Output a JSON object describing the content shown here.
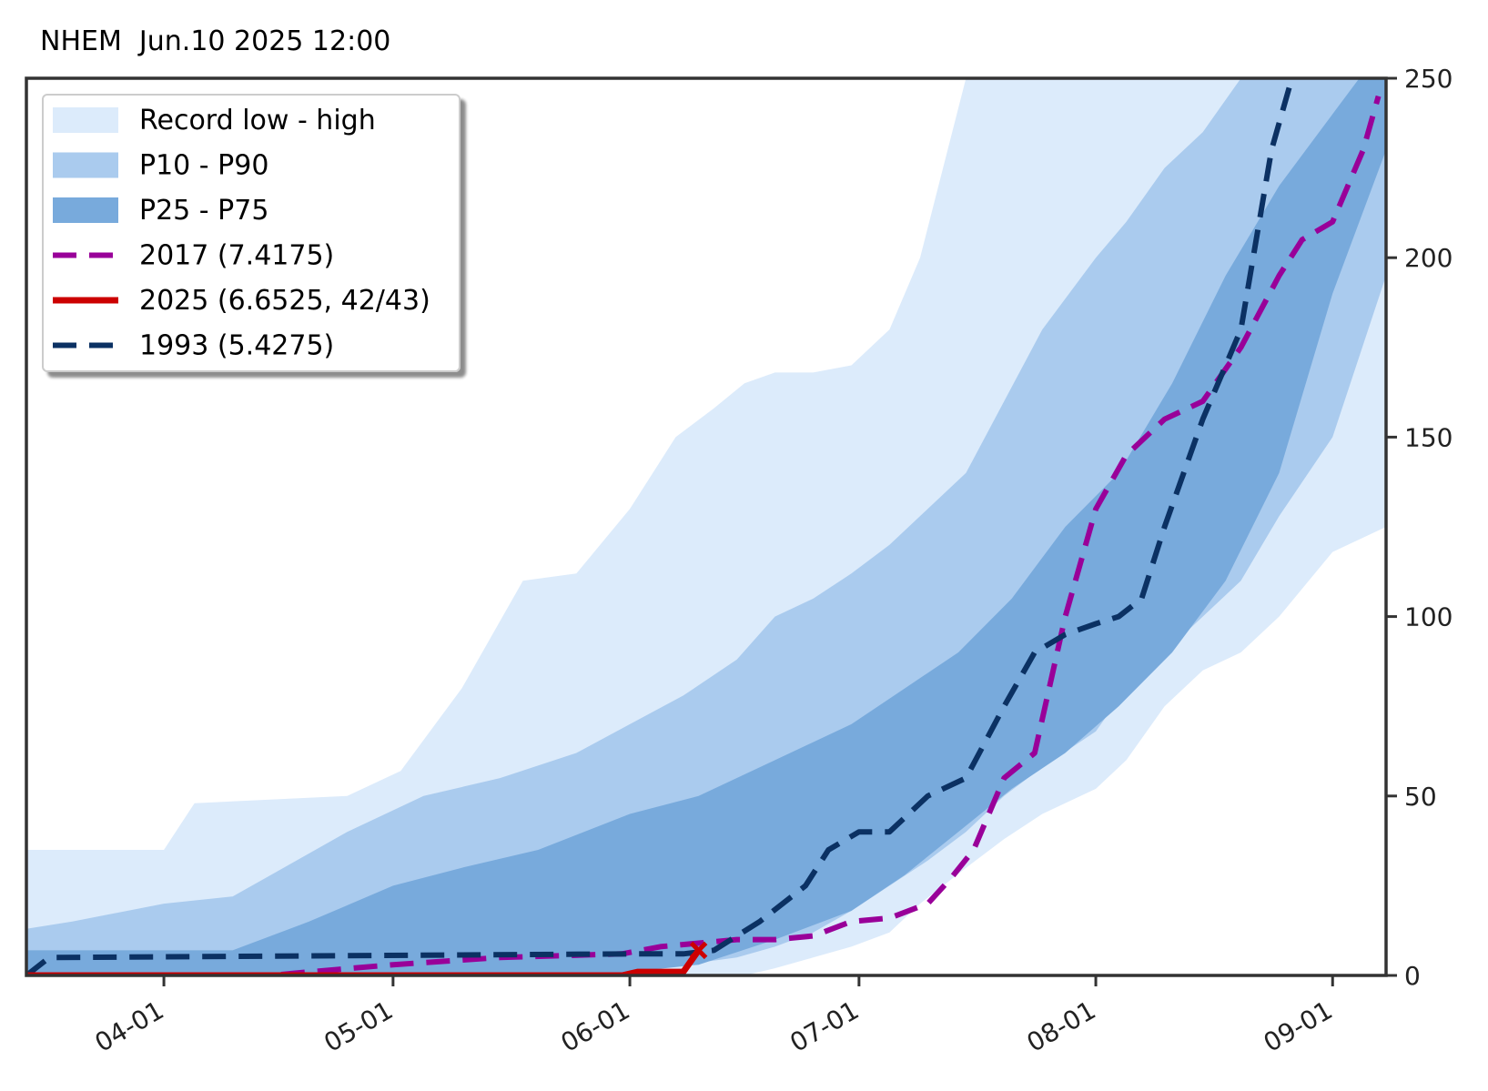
{
  "chart_data": {
    "type": "area",
    "title": "NHEM  Jun.10 2025 12:00",
    "xlabel": "",
    "ylabel": "",
    "x_axis": {
      "type": "date",
      "range": [
        "2025-03-14",
        "2025-09-08"
      ],
      "tick_labels": [
        "04-01",
        "05-01",
        "06-01",
        "07-01",
        "08-01",
        "09-01"
      ],
      "tick_dates": [
        "2025-04-01",
        "2025-05-01",
        "2025-06-01",
        "2025-07-01",
        "2025-08-01",
        "2025-09-01"
      ]
    },
    "y_axis": {
      "side": "right",
      "range": [
        0,
        250
      ],
      "ticks": [
        0,
        50,
        100,
        150,
        200,
        250
      ]
    },
    "grid": false,
    "legend_position": "top-left",
    "colors": {
      "record": "#dcebfb",
      "p10_p90": "#aacbee",
      "p25_p75": "#78aadc",
      "y2017": "#990099",
      "y2025": "#cc0000",
      "y1993": "#0b3163",
      "frame": "#333333"
    },
    "legend": [
      {
        "key": "record",
        "label": "Record low - high",
        "style": "patch"
      },
      {
        "key": "p10_p90",
        "label": "P10 - P90",
        "style": "patch"
      },
      {
        "key": "p25_p75",
        "label": "P25 - P75",
        "style": "patch"
      },
      {
        "key": "y2017",
        "label": "2017 (7.4175)",
        "style": "dashed"
      },
      {
        "key": "y2025",
        "label": "2025 (6.6525, 42/43)",
        "style": "solid"
      },
      {
        "key": "y1993",
        "label": "1993 (5.4275)",
        "style": "dashed"
      }
    ],
    "bands": [
      {
        "name": "Record low - high",
        "key": "record",
        "x": [
          "2025-03-14",
          "2025-04-01",
          "2025-04-05",
          "2025-04-25",
          "2025-05-02",
          "2025-05-10",
          "2025-05-18",
          "2025-05-25",
          "2025-06-01",
          "2025-06-07",
          "2025-06-12",
          "2025-06-16",
          "2025-06-20",
          "2025-06-25",
          "2025-06-30",
          "2025-07-05",
          "2025-07-09",
          "2025-07-15",
          "2025-07-20",
          "2025-07-25",
          "2025-08-01",
          "2025-08-05",
          "2025-08-10",
          "2025-08-15",
          "2025-08-20",
          "2025-08-25",
          "2025-09-01",
          "2025-09-08"
        ],
        "low": [
          0,
          0,
          0,
          0,
          0,
          0,
          0,
          0,
          0,
          0,
          0,
          0,
          2,
          5,
          8,
          12,
          20,
          30,
          38,
          45,
          52,
          60,
          75,
          85,
          90,
          100,
          118,
          125
        ],
        "high": [
          35,
          35,
          48,
          50,
          57,
          80,
          110,
          112,
          130,
          150,
          158,
          165,
          168,
          168,
          170,
          180,
          200,
          250,
          260,
          260,
          260,
          260,
          260,
          260,
          260,
          260,
          260,
          260
        ]
      },
      {
        "name": "P10 - P90",
        "key": "p10_p90",
        "x": [
          "2025-03-14",
          "2025-03-20",
          "2025-04-01",
          "2025-04-10",
          "2025-04-15",
          "2025-04-25",
          "2025-05-05",
          "2025-05-15",
          "2025-05-25",
          "2025-06-01",
          "2025-06-08",
          "2025-06-15",
          "2025-06-20",
          "2025-06-25",
          "2025-06-30",
          "2025-07-05",
          "2025-07-10",
          "2025-07-15",
          "2025-07-20",
          "2025-07-25",
          "2025-08-01",
          "2025-08-05",
          "2025-08-10",
          "2025-08-15",
          "2025-08-20",
          "2025-08-25",
          "2025-09-01",
          "2025-09-08"
        ],
        "low": [
          0,
          0,
          0,
          0,
          0,
          0,
          0,
          0,
          1,
          2,
          3,
          5,
          8,
          12,
          18,
          25,
          32,
          40,
          50,
          58,
          68,
          80,
          90,
          100,
          110,
          128,
          150,
          195
        ],
        "high": [
          13,
          15,
          20,
          22,
          28,
          40,
          50,
          55,
          62,
          70,
          78,
          88,
          100,
          105,
          112,
          120,
          130,
          140,
          160,
          180,
          200,
          210,
          225,
          235,
          250,
          260,
          260,
          260
        ]
      },
      {
        "name": "P25 - P75",
        "key": "p25_p75",
        "x": [
          "2025-03-14",
          "2025-04-01",
          "2025-04-10",
          "2025-04-20",
          "2025-05-01",
          "2025-05-10",
          "2025-05-20",
          "2025-06-01",
          "2025-06-10",
          "2025-06-20",
          "2025-06-30",
          "2025-07-07",
          "2025-07-14",
          "2025-07-21",
          "2025-07-28",
          "2025-08-04",
          "2025-08-11",
          "2025-08-18",
          "2025-08-25",
          "2025-09-01",
          "2025-09-08"
        ],
        "low": [
          0,
          0,
          0,
          0,
          0,
          0,
          0,
          1,
          3,
          10,
          18,
          28,
          40,
          52,
          62,
          75,
          90,
          110,
          140,
          190,
          230
        ],
        "high": [
          7,
          7,
          7,
          15,
          25,
          30,
          35,
          45,
          50,
          60,
          70,
          80,
          90,
          105,
          125,
          140,
          165,
          195,
          220,
          240,
          260
        ]
      }
    ],
    "series": [
      {
        "name": "2017 (7.4175)",
        "key": "y2017",
        "style": "dashed",
        "x": [
          "2025-03-14",
          "2025-04-15",
          "2025-04-20",
          "2025-05-01",
          "2025-05-15",
          "2025-05-31",
          "2025-06-05",
          "2025-06-10",
          "2025-06-15",
          "2025-06-20",
          "2025-06-25",
          "2025-06-30",
          "2025-07-05",
          "2025-07-10",
          "2025-07-13",
          "2025-07-16",
          "2025-07-20",
          "2025-07-24",
          "2025-07-28",
          "2025-08-01",
          "2025-08-05",
          "2025-08-10",
          "2025-08-15",
          "2025-08-20",
          "2025-08-25",
          "2025-08-28",
          "2025-09-01",
          "2025-09-05",
          "2025-09-07"
        ],
        "values": [
          0,
          0,
          1,
          3,
          5,
          6,
          8,
          9,
          10,
          10,
          11,
          15,
          16,
          20,
          27,
          35,
          55,
          62,
          100,
          130,
          145,
          155,
          160,
          175,
          195,
          205,
          210,
          230,
          245
        ]
      },
      {
        "name": "2025 (6.6525, 42/43)",
        "key": "y2025",
        "style": "solid",
        "x": [
          "2025-03-14",
          "2025-05-25",
          "2025-05-31",
          "2025-06-02",
          "2025-06-05",
          "2025-06-08",
          "2025-06-09",
          "2025-06-10"
        ],
        "values": [
          0,
          0,
          0,
          1,
          1,
          1,
          4,
          7
        ]
      },
      {
        "name": "1993 (5.4275)",
        "key": "y1993",
        "style": "dashed",
        "x": [
          "2025-03-14",
          "2025-03-17",
          "2025-06-01",
          "2025-06-08",
          "2025-06-12",
          "2025-06-18",
          "2025-06-24",
          "2025-06-27",
          "2025-07-01",
          "2025-07-05",
          "2025-07-10",
          "2025-07-15",
          "2025-07-20",
          "2025-07-24",
          "2025-07-28",
          "2025-08-01",
          "2025-08-04",
          "2025-08-07",
          "2025-08-10",
          "2025-08-15",
          "2025-08-20",
          "2025-08-24",
          "2025-08-28"
        ],
        "values": [
          0,
          5,
          6,
          6,
          7,
          15,
          25,
          35,
          40,
          40,
          50,
          55,
          75,
          90,
          95,
          98,
          100,
          105,
          125,
          155,
          180,
          230,
          260
        ]
      }
    ],
    "markers": [
      {
        "series": "2025 (6.6525, 42/43)",
        "x": "2025-06-10",
        "y": 7,
        "shape": "x"
      }
    ]
  }
}
